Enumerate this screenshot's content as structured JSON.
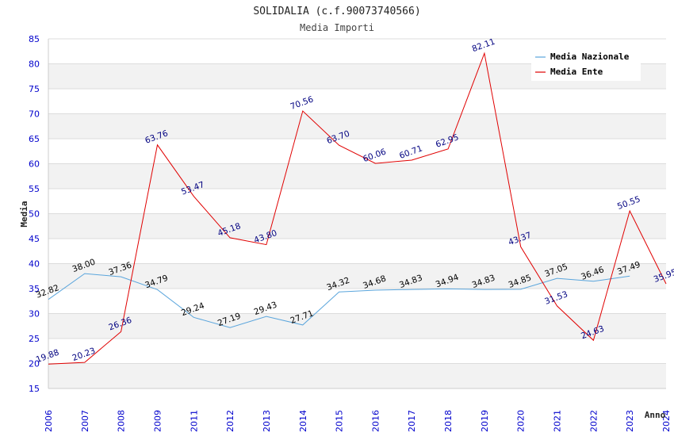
{
  "chart_data": {
    "type": "line",
    "title": "SOLIDALIA (c.f.90073740566)",
    "subtitle": "Media Importi",
    "xlabel": "Anno",
    "ylabel": "Media",
    "ylim": [
      15,
      85
    ],
    "yticks": [
      "15",
      "20",
      "25",
      "30",
      "35",
      "40",
      "45",
      "50",
      "55",
      "60",
      "65",
      "70",
      "75",
      "80",
      "85"
    ],
    "categories": [
      "2006",
      "2007",
      "2008",
      "2009",
      "2011",
      "2012",
      "2013",
      "2014",
      "2015",
      "2016",
      "2017",
      "2018",
      "2019",
      "2020",
      "2021",
      "2022",
      "2023",
      "2024"
    ],
    "series": [
      {
        "name": "Media Nazionale",
        "color": "#5aa5dc",
        "values": [
          32.82,
          38.0,
          37.36,
          34.79,
          29.24,
          27.19,
          29.43,
          27.71,
          34.32,
          34.68,
          34.83,
          34.94,
          34.83,
          34.85,
          37.05,
          36.46,
          37.49,
          null
        ],
        "labels": [
          "32.82",
          "38.00",
          "37.36",
          "34.79",
          "29.24",
          "27.19",
          "29.43",
          "27.71",
          "34.32",
          "34.68",
          "34.83",
          "34.94",
          "34.83",
          "34.85",
          "37.05",
          "36.46",
          "37.49",
          null
        ]
      },
      {
        "name": "Media Ente",
        "color": "#e00000",
        "values": [
          19.88,
          20.23,
          26.36,
          63.76,
          53.47,
          45.18,
          43.8,
          70.56,
          63.7,
          60.06,
          60.71,
          62.95,
          82.11,
          43.37,
          31.53,
          24.63,
          50.55,
          35.95
        ],
        "labels": [
          "19.88",
          "20.23",
          "26.36",
          "63.76",
          "53.47",
          "45.18",
          "43.80",
          "70.56",
          "63.70",
          "60.06",
          "60.71",
          "62.95",
          "82.11",
          "43.37",
          "31.53",
          "24.63",
          "50.55",
          "35.95"
        ]
      }
    ],
    "legend": "top-right",
    "grid": true
  }
}
